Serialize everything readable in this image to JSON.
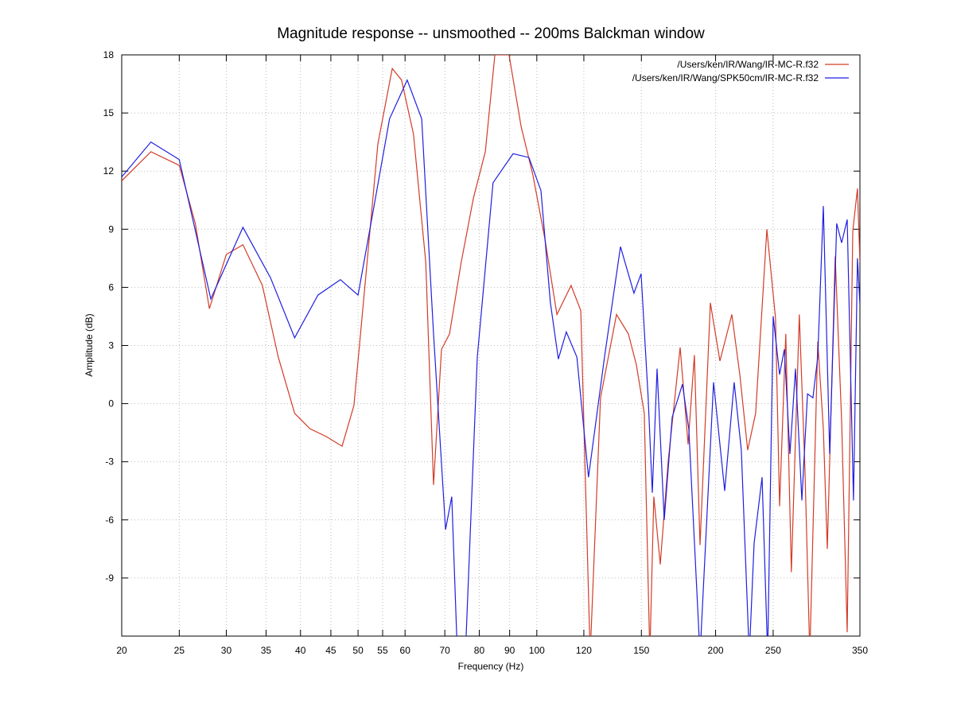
{
  "chart_data": {
    "type": "line",
    "title": "Magnitude response -- unsmoothed -- 200ms Balckman window",
    "x_label": "Frequency (Hz)",
    "y_label": "Amplitude (dB)",
    "log_x": true,
    "grid": true,
    "legend": "top-right",
    "xlim": [
      20,
      350
    ],
    "ylim": [
      -12,
      18
    ],
    "xticks": [
      20,
      25,
      30,
      35,
      40,
      45,
      50,
      55,
      60,
      70,
      80,
      90,
      100,
      120,
      150,
      200,
      250,
      350
    ],
    "yticks": [
      18,
      15,
      12,
      9,
      6,
      3,
      0,
      -3,
      -6,
      -9
    ],
    "series": [
      {
        "name": "/Users/ken/IR/Wang/IR-MC-R.f32",
        "color": "#d23c28",
        "x": [
          20,
          22.4,
          25,
          26.6,
          28.1,
          30,
          32,
          34.5,
          36.7,
          39.1,
          41.5,
          44.2,
          47,
          49.2,
          51.5,
          54,
          57.1,
          59.2,
          62,
          65,
          67,
          69.1,
          71.3,
          74.6,
          78.2,
          81.9,
          85,
          89.8,
          94.1,
          98.5,
          103.2,
          108.1,
          114.2,
          118.6,
          123,
          128,
          136.2,
          142.6,
          147.1,
          151.7,
          155,
          157.4,
          161.4,
          166.4,
          174.3,
          179.8,
          184.2,
          188.3,
          196,
          203.4,
          213,
          219.7,
          226.5,
          233.6,
          244,
          252.3,
          256.3,
          262.6,
          268.3,
          276.7,
          282.8,
          288.2,
          297.2,
          303.7,
          308.4,
          318,
          326,
          333.1,
          340.4,
          346.7,
          350
        ],
        "values": [
          11.5,
          13.0,
          12.3,
          9.3,
          4.9,
          7.7,
          8.2,
          6.1,
          2.4,
          -0.5,
          -1.3,
          -1.7,
          -2.2,
          -0.1,
          6.5,
          13.4,
          17.3,
          16.7,
          13.9,
          7.3,
          -4.2,
          2.8,
          3.6,
          7.3,
          10.6,
          13.0,
          18,
          18,
          14.3,
          11.8,
          8.5,
          4.6,
          6.1,
          4.8,
          -13,
          0.3,
          4.6,
          3.6,
          2.0,
          -0.5,
          -13,
          -4.8,
          -8.3,
          -3.0,
          2.9,
          -2.1,
          2.5,
          -7.3,
          5.2,
          2.2,
          4.6,
          1.5,
          -2.4,
          -0.5,
          9.0,
          4.4,
          -5.3,
          3.6,
          -8.7,
          4.6,
          -3.4,
          -13,
          3.2,
          -1.3,
          -7.5,
          7.6,
          -0.9,
          -11.8,
          8.9,
          11.1,
          7.3
        ]
      },
      {
        "name": "/Users/ken/IR/Wang/SPK50cm/IR-MC-R.f32",
        "color": "#1f1fe0",
        "x": [
          20,
          22.4,
          25,
          28.25,
          32,
          35.6,
          39.1,
          42.8,
          46.7,
          50,
          53.2,
          56.5,
          60.5,
          64,
          67,
          70.2,
          71.9,
          73.5,
          75.8,
          79.4,
          84.4,
          91.2,
          97,
          101.6,
          105.4,
          108.7,
          112.1,
          116.8,
          122.2,
          130,
          138.3,
          145.7,
          149.8,
          154,
          156.5,
          159.4,
          163.9,
          169,
          175.9,
          180.3,
          188.3,
          198.4,
          207.2,
          214.9,
          221,
          227.9,
          232.2,
          239.5,
          244.7,
          250.1,
          256.3,
          261.1,
          266.8,
          272.6,
          279.4,
          285.6,
          291.7,
          297.2,
          303.7,
          311.3,
          319.9,
          326,
          333.1,
          341.4,
          346.7,
          350
        ],
        "values": [
          11.7,
          13.5,
          12.6,
          5.4,
          9.1,
          6.5,
          3.4,
          5.6,
          6.4,
          5.6,
          10.2,
          14.7,
          16.7,
          14.7,
          3.6,
          -6.5,
          -4.8,
          -13,
          -13,
          2.4,
          11.4,
          12.9,
          12.7,
          11.0,
          5.2,
          2.3,
          3.7,
          2.4,
          -3.8,
          2.4,
          8.1,
          5.7,
          6.7,
          0.3,
          -4.6,
          1.8,
          -6.0,
          -0.7,
          1.0,
          -1.3,
          -13,
          1.1,
          -4.5,
          1.1,
          -2.4,
          -13,
          -7.2,
          -3.8,
          -13,
          4.5,
          1.5,
          2.8,
          -2.6,
          1.8,
          -5.0,
          0.5,
          0.3,
          2.4,
          10.2,
          -2.6,
          9.3,
          8.3,
          9.5,
          -5.0,
          7.5,
          5.1
        ]
      }
    ]
  }
}
